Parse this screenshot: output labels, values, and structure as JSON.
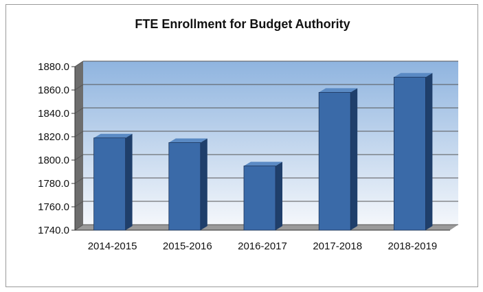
{
  "chart_data": {
    "type": "bar",
    "title": "FTE Enrollment for Budget Authority",
    "xlabel": "",
    "ylabel": "",
    "categories": [
      "2014-2015",
      "2015-2016",
      "2016-2017",
      "2017-2018",
      "2018-2019"
    ],
    "values": [
      1819.0,
      1815.0,
      1795.0,
      1858.0,
      1871.0
    ],
    "ylim": [
      1740.0,
      1880.0
    ],
    "ytick_labels": [
      "1740.0",
      "1760.0",
      "1780.0",
      "1800.0",
      "1820.0",
      "1840.0",
      "1860.0",
      "1880.0"
    ],
    "grid": true,
    "legend": "none",
    "style": "3d-column",
    "colors": {
      "bar_front": "#3a6aa8",
      "bar_side": "#1f3f6b",
      "bar_top": "#5a8ac4",
      "plot_top": "#8fb4df",
      "plot_bottom": "#f4f7fb",
      "gridline": "#555555"
    }
  }
}
